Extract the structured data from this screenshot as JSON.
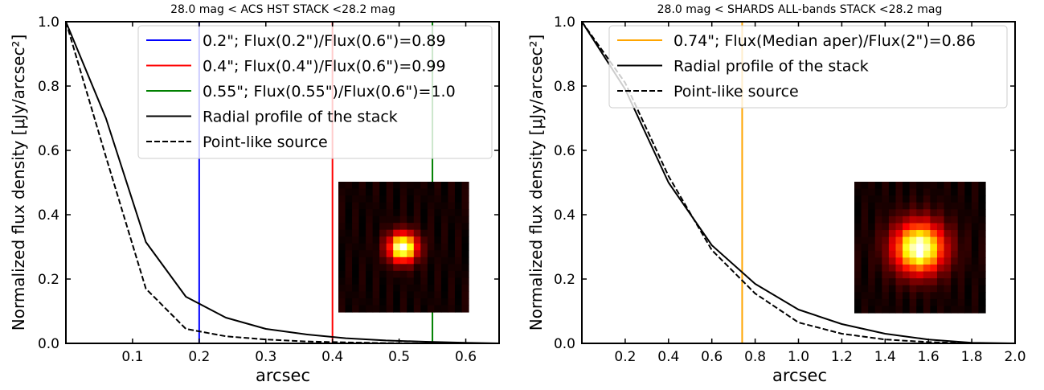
{
  "colors": {
    "blue": "#0000ff",
    "red": "#ff0000",
    "green": "#008000",
    "orange": "#ffa500",
    "black": "#000000"
  },
  "chart_data": [
    {
      "type": "line",
      "title": "28.0 mag < ACS HST STACK <28.2 mag",
      "xlabel": "arcsec",
      "ylabel": "Normalized flux density [μJy/arcsec²]",
      "xlim": [
        0.0,
        0.65
      ],
      "ylim": [
        0.0,
        1.0
      ],
      "xticks": [
        "0.1",
        "0.2",
        "0.3",
        "0.4",
        "0.5",
        "0.6"
      ],
      "xtick_values": [
        0.1,
        0.2,
        0.3,
        0.4,
        0.5,
        0.6
      ],
      "yticks": [
        "0.0",
        "0.2",
        "0.4",
        "0.6",
        "0.8",
        "1.0"
      ],
      "ytick_values": [
        0.0,
        0.2,
        0.4,
        0.6,
        0.8,
        1.0
      ],
      "legend_position": "upper-right",
      "series": [
        {
          "name": "Radial profile of the stack",
          "style": "solid",
          "color": "#000000",
          "x": [
            0.0,
            0.06,
            0.12,
            0.18,
            0.24,
            0.3,
            0.36,
            0.42,
            0.48,
            0.54,
            0.6,
            0.65
          ],
          "y": [
            1.0,
            0.7,
            0.315,
            0.145,
            0.08,
            0.045,
            0.028,
            0.016,
            0.009,
            0.005,
            0.002,
            0.0
          ]
        },
        {
          "name": "Point-like source",
          "style": "dashed",
          "color": "#000000",
          "x": [
            0.0,
            0.06,
            0.12,
            0.18,
            0.24,
            0.3,
            0.36,
            0.42,
            0.48,
            0.54,
            0.6,
            0.65
          ],
          "y": [
            1.0,
            0.58,
            0.17,
            0.045,
            0.022,
            0.012,
            0.006,
            0.003,
            0.001,
            0.0,
            0.0,
            0.0
          ]
        }
      ],
      "vlines": [
        {
          "name": "0.2\"; Flux(0.2\")/Flux(0.6\")=0.89",
          "x": 0.2,
          "color": "#0000ff"
        },
        {
          "name": "0.4\"; Flux(0.4\")/Flux(0.6\")=0.99",
          "x": 0.4,
          "color": "#ff0000"
        },
        {
          "name": "0.55\"; Flux(0.55\")/Flux(0.6\")=1.0",
          "x": 0.55,
          "color": "#008000"
        }
      ],
      "legend_order": [
        "v0",
        "v1",
        "v2",
        "s0",
        "s1"
      ],
      "inset": {
        "kind": "stamp",
        "sigma": 1.5
      }
    },
    {
      "type": "line",
      "title": "28.0 mag < SHARDS ALL-bands STACK <28.2 mag",
      "xlabel": "arcsec",
      "ylabel": "Normalized flux density [μJy/arcsec²]",
      "xlim": [
        0.0,
        2.0
      ],
      "ylim": [
        0.0,
        1.0
      ],
      "xticks": [
        "0.2",
        "0.4",
        "0.6",
        "0.8",
        "1.0",
        "1.2",
        "1.4",
        "1.6",
        "1.8",
        "2.0"
      ],
      "xtick_values": [
        0.2,
        0.4,
        0.6,
        0.8,
        1.0,
        1.2,
        1.4,
        1.6,
        1.8,
        2.0
      ],
      "yticks": [
        "0.0",
        "0.2",
        "0.4",
        "0.6",
        "0.8",
        "1.0"
      ],
      "ytick_values": [
        0.0,
        0.2,
        0.4,
        0.6,
        0.8,
        1.0
      ],
      "legend_position": "upper-right",
      "series": [
        {
          "name": "Radial profile of the stack",
          "style": "solid",
          "color": "#000000",
          "x": [
            0.0,
            0.2,
            0.4,
            0.6,
            0.8,
            1.0,
            1.2,
            1.4,
            1.6,
            1.8,
            2.0
          ],
          "y": [
            1.0,
            0.79,
            0.5,
            0.305,
            0.185,
            0.105,
            0.06,
            0.03,
            0.012,
            0.002,
            0.0
          ]
        },
        {
          "name": "Point-like source",
          "style": "dashed",
          "color": "#000000",
          "x": [
            0.0,
            0.2,
            0.4,
            0.6,
            0.8,
            1.0,
            1.2,
            1.4,
            1.6,
            1.8,
            2.0
          ],
          "y": [
            1.0,
            0.81,
            0.52,
            0.29,
            0.155,
            0.065,
            0.03,
            0.012,
            0.004,
            0.0,
            0.0
          ]
        }
      ],
      "vlines": [
        {
          "name": "0.74\"; Flux(Median aper)/Flux(2\")=0.86",
          "x": 0.74,
          "color": "#ffa500"
        }
      ],
      "legend_order": [
        "v0",
        "s0",
        "s1"
      ],
      "inset": {
        "kind": "stamp",
        "sigma": 2.6
      }
    }
  ]
}
